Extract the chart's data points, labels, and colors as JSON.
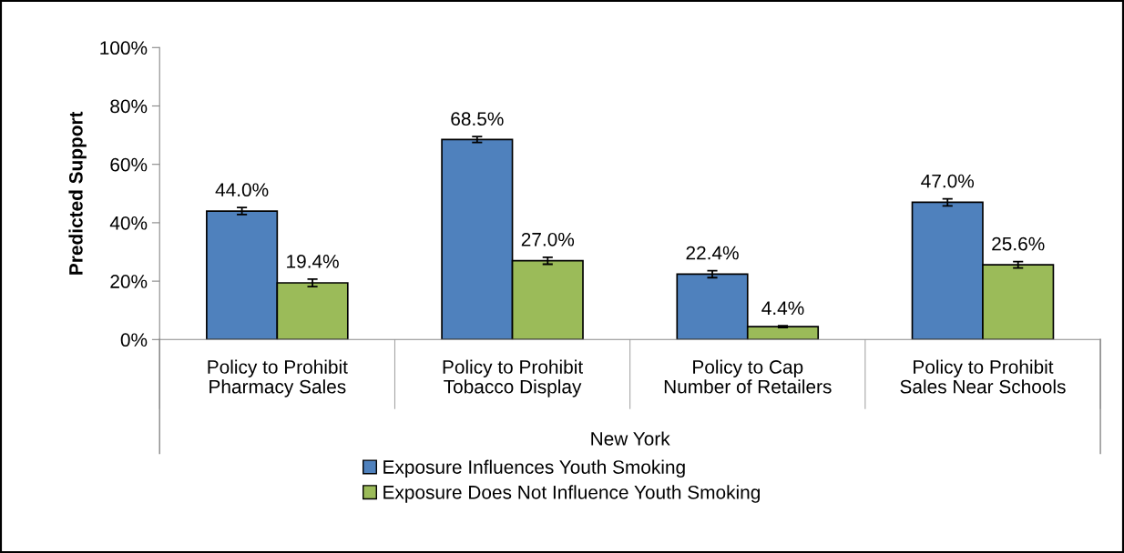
{
  "chart_data": {
    "type": "bar",
    "ylabel": "Predicted Support",
    "xlabel": "New York",
    "categories": [
      "Policy to Prohibit\nPharmacy Sales",
      "Policy to Prohibit\nTobacco Display",
      "Policy to Cap\nNumber of Retailers",
      "Policy to Prohibit\nSales Near Schools"
    ],
    "series": [
      {
        "name": "Exposure Influences Youth Smoking",
        "color": "#4f81bd",
        "values": [
          44.0,
          68.5,
          22.4,
          47.0
        ],
        "errors": [
          1.2,
          1.0,
          1.2,
          1.2
        ],
        "value_labels": [
          "44.0%",
          "68.5%",
          "22.4%",
          "47.0%"
        ]
      },
      {
        "name": "Exposure Does Not Influence Youth Smoking",
        "color": "#9bbb59",
        "values": [
          19.4,
          27.0,
          4.4,
          25.6
        ],
        "errors": [
          1.3,
          1.2,
          0.3,
          1.1
        ],
        "value_labels": [
          "19.4%",
          "27.0%",
          "4.4%",
          "25.6%"
        ]
      }
    ],
    "ylim": [
      0,
      100
    ],
    "yticks": [
      {
        "value": 0,
        "label": "0%"
      },
      {
        "value": 20,
        "label": "20%"
      },
      {
        "value": 40,
        "label": "40%"
      },
      {
        "value": 60,
        "label": "60%"
      },
      {
        "value": 80,
        "label": "80%"
      },
      {
        "value": 100,
        "label": "100%"
      }
    ],
    "grid": false,
    "legend": "bottom"
  }
}
